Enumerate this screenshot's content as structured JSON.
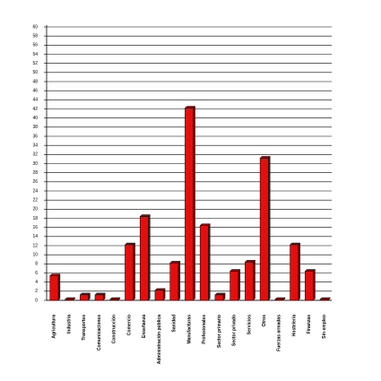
{
  "chart_data": {
    "type": "bar",
    "categories": [
      "Agricultura",
      "Industria",
      "Transportes",
      "Comunicaciones",
      "Construcción",
      "Comercio",
      "Enseñanza",
      "Administración pública",
      "Sanidad",
      "Manufacturas",
      "Profesionales",
      "Sector primario",
      "Sector privado",
      "Servicios",
      "Otros",
      "Fuerzas armadas",
      "Hostelería",
      "Finanzas",
      "Sin empleo"
    ],
    "values": [
      5.4,
      0.2,
      1.2,
      1.2,
      0.2,
      12.2,
      18.4,
      2.2,
      8.2,
      42.2,
      16.4,
      1.2,
      6.4,
      8.4,
      31.2,
      0.2,
      12.2,
      6.4,
      0.2
    ],
    "color": "#e01010",
    "ylim": [
      0,
      60
    ],
    "yticks": [
      0,
      2,
      4,
      6,
      8,
      10,
      12,
      14,
      16,
      18,
      20,
      22,
      24,
      26,
      28,
      30,
      32,
      34,
      36,
      38,
      40,
      42,
      44,
      46,
      48,
      50,
      52,
      54,
      56,
      58,
      60
    ],
    "grid": true
  }
}
